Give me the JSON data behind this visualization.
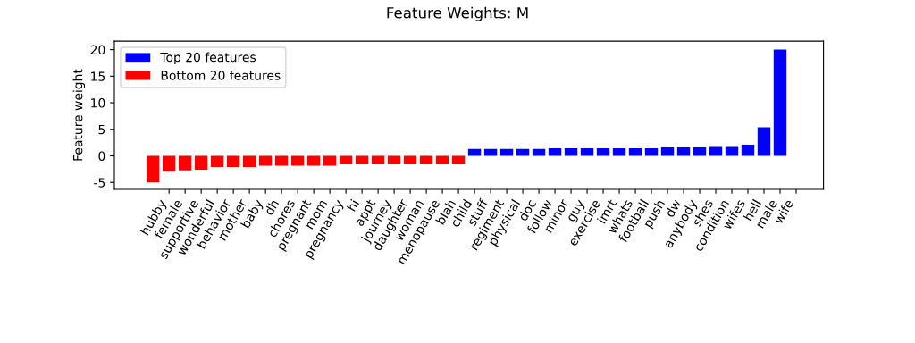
{
  "chart_data": {
    "type": "bar",
    "title": "Feature Weights: M",
    "ylabel": "Feature weight",
    "categories": [
      null,
      "hubby",
      "female",
      "supportive",
      "wonderful",
      "behavior",
      "mother",
      "baby",
      "dh",
      "chores",
      "pregnant",
      "mom",
      "pregnancy",
      "hi",
      "appt",
      "journey",
      "daughter",
      "woman",
      "menopause",
      "blah",
      "child",
      "stuff",
      "regiment",
      "physical",
      "doc",
      "follow",
      "minor",
      "guy",
      "exercise",
      "imrt",
      "whats",
      "football",
      "push",
      "dw",
      "anybody",
      "shes",
      "condition",
      "wifes",
      "hell",
      "male",
      "wife"
    ],
    "series": [
      {
        "name": "Top 20 features",
        "color": "#0000ff",
        "values": [
          null,
          null,
          null,
          null,
          null,
          null,
          null,
          null,
          null,
          null,
          null,
          null,
          null,
          null,
          null,
          null,
          null,
          null,
          null,
          null,
          1.3,
          1.3,
          1.3,
          1.3,
          1.3,
          1.45,
          1.45,
          1.45,
          1.45,
          1.45,
          1.45,
          1.45,
          1.6,
          1.6,
          1.6,
          1.7,
          1.7,
          2.1,
          5.4,
          20.0,
          null
        ]
      },
      {
        "name": "Bottom 20 features",
        "color": "#ff0000",
        "values": [
          -5.0,
          -3.0,
          -2.75,
          -2.6,
          -2.1,
          -2.1,
          -2.1,
          -1.85,
          -1.85,
          -1.85,
          -1.85,
          -1.85,
          -1.6,
          -1.6,
          -1.6,
          -1.6,
          -1.6,
          -1.6,
          -1.6,
          -1.6,
          null,
          null,
          null,
          null,
          null,
          null,
          null,
          null,
          null,
          null,
          null,
          null,
          null,
          null,
          null,
          null,
          null,
          null,
          null,
          null,
          null
        ]
      }
    ],
    "ylim": [
      -6.3,
      21.6
    ],
    "yticks": [
      -5,
      0,
      5,
      10,
      15,
      20
    ],
    "grid": false,
    "legend": "top left"
  }
}
